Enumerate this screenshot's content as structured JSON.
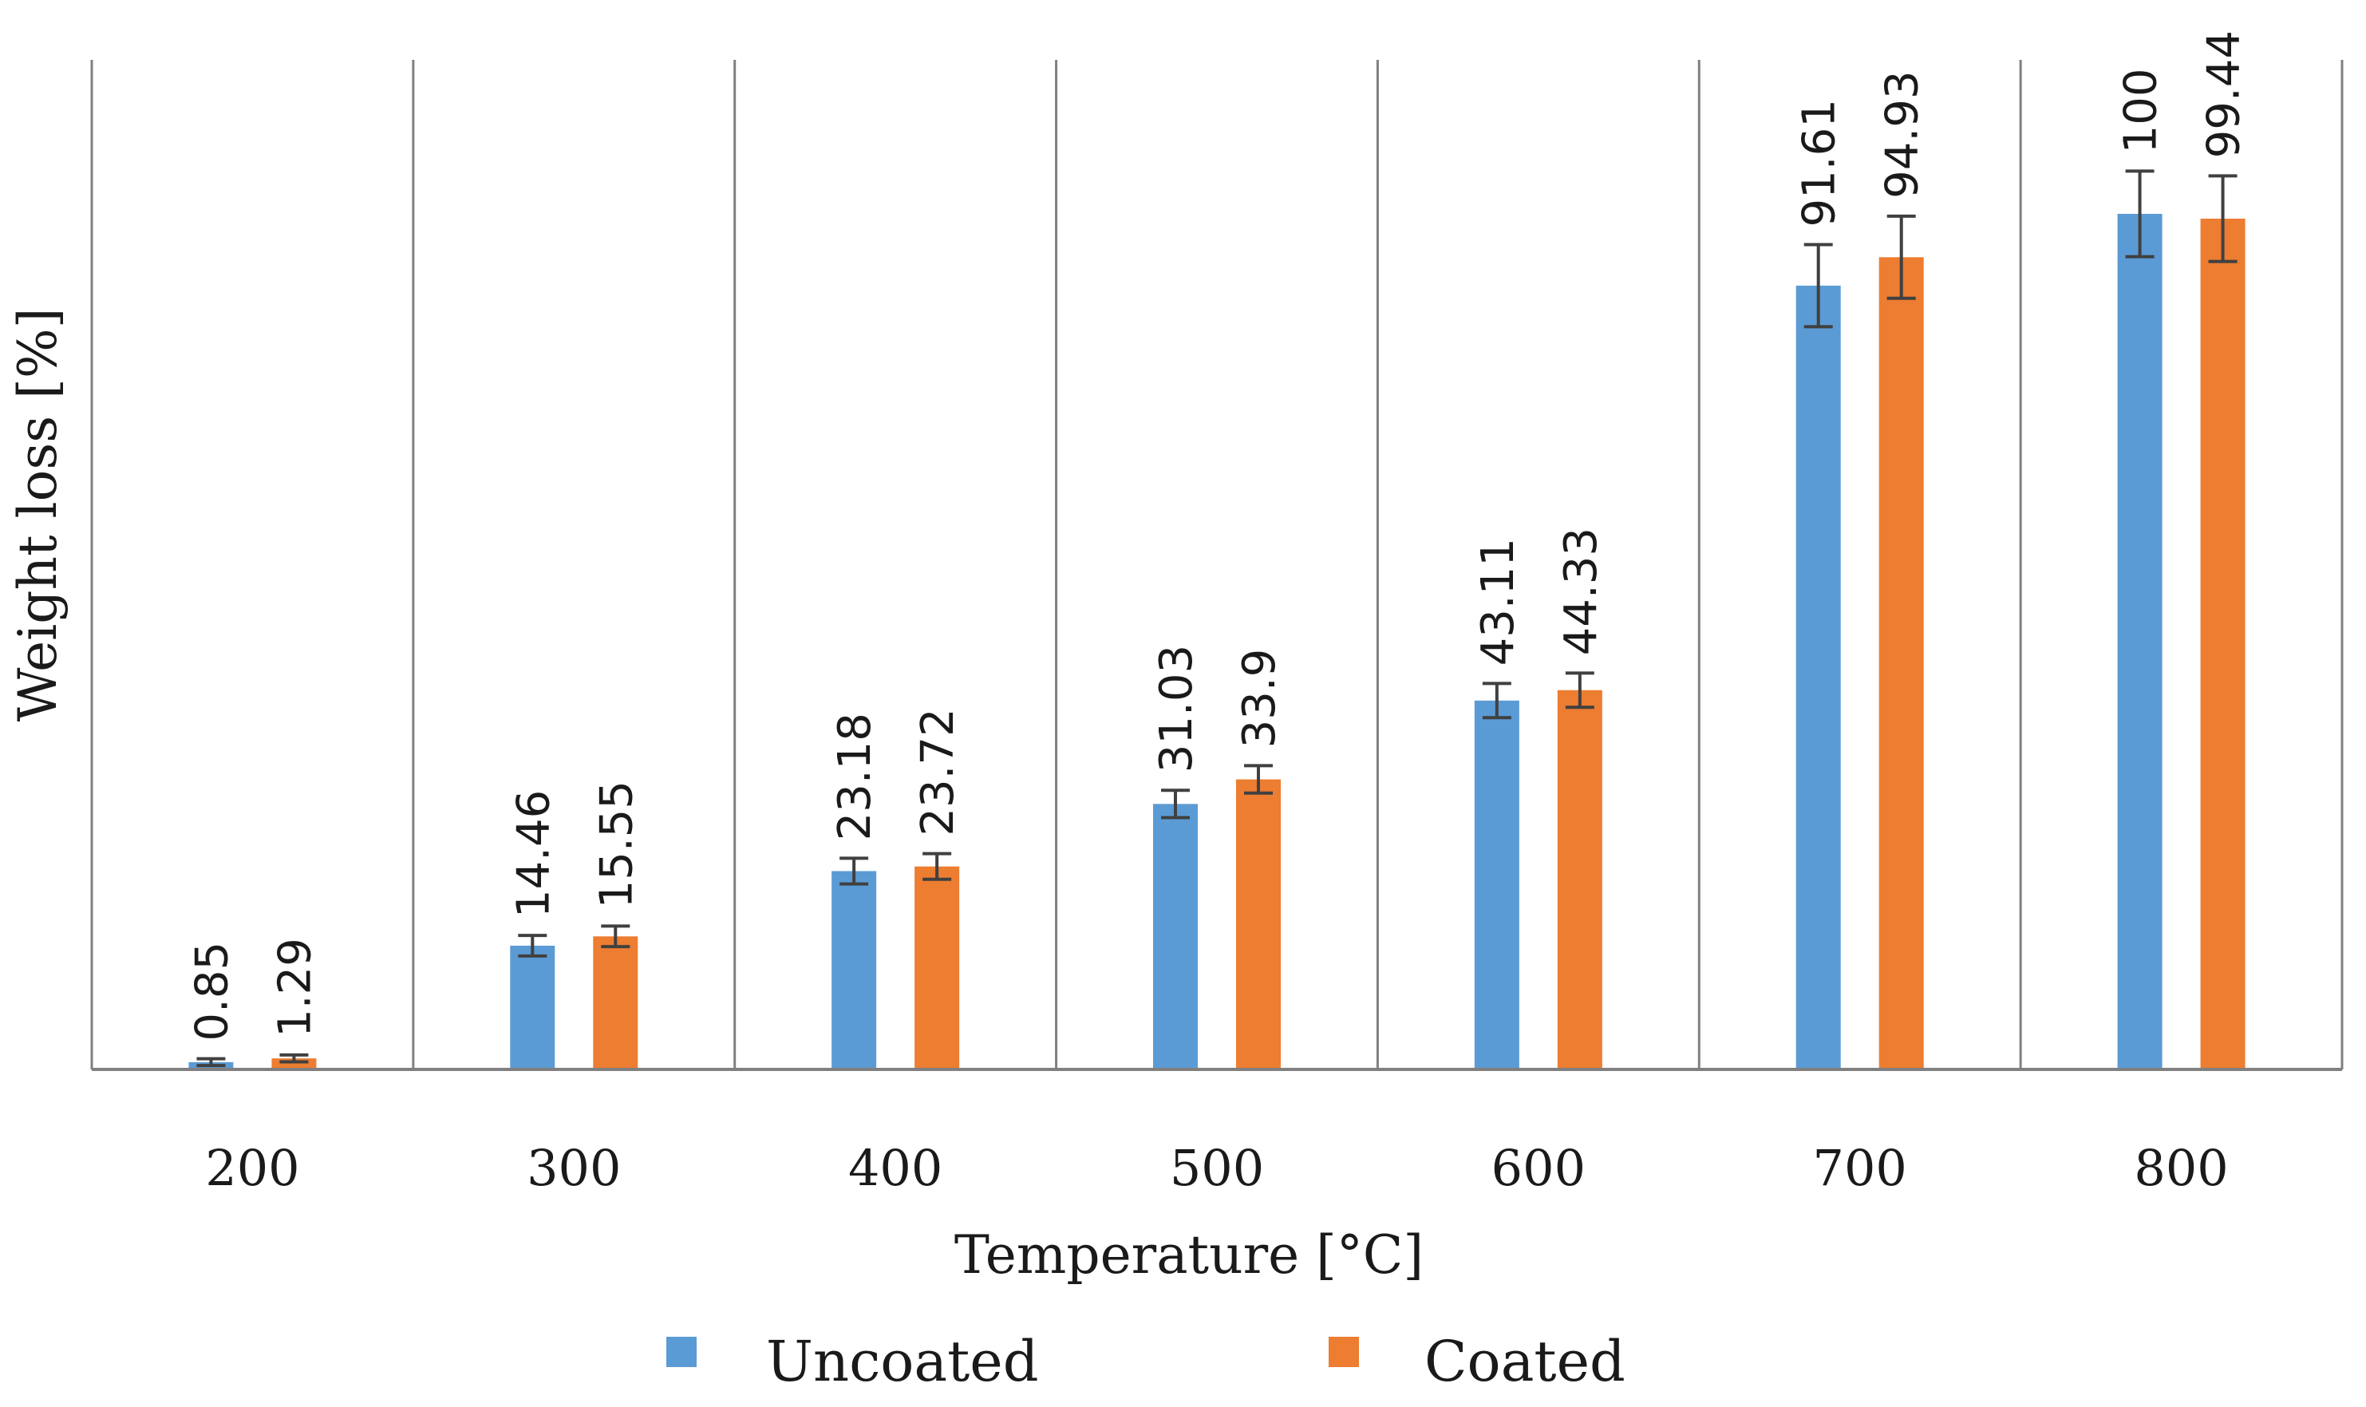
{
  "chart_data": {
    "type": "bar",
    "title": "",
    "xlabel": "Temperature [°C]",
    "ylabel": "Weight loss [%]",
    "categories": [
      "200",
      "300",
      "400",
      "500",
      "600",
      "700",
      "800"
    ],
    "series": [
      {
        "name": "Uncoated",
        "color": "#5b9bd5",
        "values": [
          0.85,
          14.46,
          23.18,
          31.03,
          43.11,
          91.61,
          100
        ],
        "labels": [
          "0.85",
          "14.46",
          "23.18",
          "31.03",
          "43.11",
          "91.61",
          "100"
        ]
      },
      {
        "name": "Coated",
        "color": "#ed7d31",
        "values": [
          1.29,
          15.55,
          23.72,
          33.9,
          44.33,
          94.93,
          99.44
        ],
        "labels": [
          "1.29",
          "15.55",
          "23.72",
          "33.9",
          "44.33",
          "94.93",
          "99.44"
        ]
      }
    ],
    "error": [
      [
        0.4,
        1.2,
        1.5,
        1.6,
        2.0,
        4.8,
        5.0
      ],
      [
        0.4,
        1.2,
        1.5,
        1.6,
        2.0,
        4.8,
        5.0
      ]
    ],
    "ylim": [
      0,
      118
    ],
    "grid": "vertical category separators",
    "legend": "bottom"
  }
}
